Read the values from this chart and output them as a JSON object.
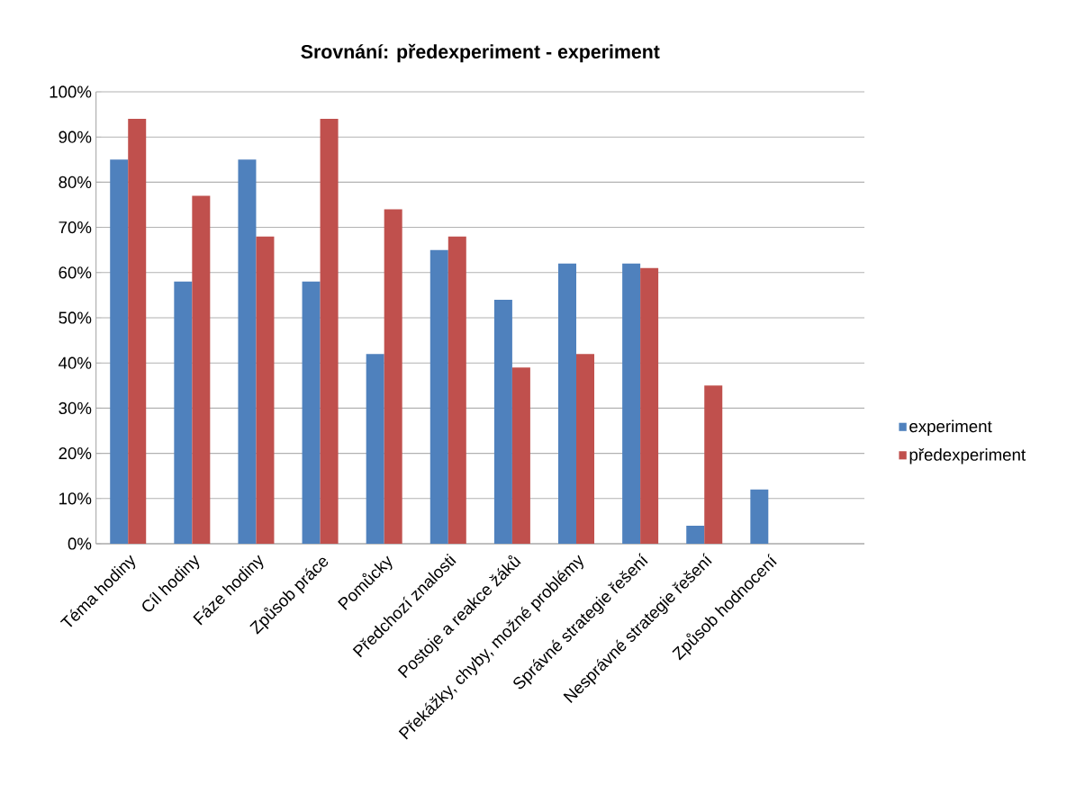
{
  "chart_data": {
    "type": "bar",
    "title": "Srovnání: předexperiment - experiment",
    "categories": [
      "Téma hodiny",
      "Cíl hodiny",
      "Fáze hodiny",
      "Způsob práce",
      "Pomůcky",
      "Předchozí znalosti",
      "Postoje a reakce žáků",
      "Překážky, chyby, možné problémy",
      "Správné strategie řešení",
      "Nesprávné strategie řešení",
      "Způsob hodnocení",
      null
    ],
    "series": [
      {
        "name": "experiment",
        "color": "#4f81bd",
        "values": [
          85,
          58,
          85,
          58,
          42,
          65,
          54,
          62,
          62,
          4,
          12,
          null
        ]
      },
      {
        "name": "předexperiment",
        "color": "#c0504d",
        "values": [
          94,
          77,
          68,
          94,
          74,
          68,
          39,
          42,
          61,
          35,
          null,
          null
        ]
      }
    ],
    "ylim": [
      0,
      100
    ],
    "yticks": [
      {
        "value": 0,
        "label": "0%"
      },
      {
        "value": 10,
        "label": "10%"
      },
      {
        "value": 20,
        "label": "20%"
      },
      {
        "value": 30,
        "label": "30%"
      },
      {
        "value": 40,
        "label": "40%"
      },
      {
        "value": 50,
        "label": "50%"
      },
      {
        "value": 60,
        "label": "60%"
      },
      {
        "value": 70,
        "label": "70%"
      },
      {
        "value": 80,
        "label": "80%"
      },
      {
        "value": 90,
        "label": "90%"
      },
      {
        "value": 100,
        "label": "100%"
      }
    ],
    "grid": "y",
    "legend": "right"
  }
}
